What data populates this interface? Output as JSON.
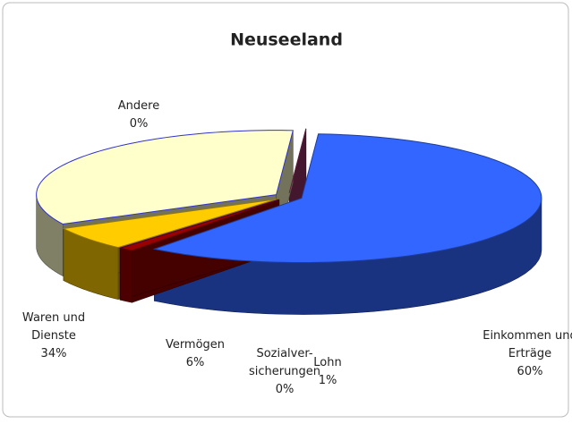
{
  "chart_data": {
    "type": "pie3d",
    "title": "Neuseeland",
    "categories": [
      "Einkommen und\nErträge",
      "Lohn",
      "Sozialver-\nsicherungen",
      "Vermögen",
      "Waren und\nDienste",
      "Andere"
    ],
    "values": [
      60,
      1,
      0,
      6,
      34,
      0
    ],
    "value_labels": [
      "60%",
      "1%",
      "0%",
      "6%",
      "34%",
      "0%"
    ],
    "colors": [
      "#3366ff",
      "#990000",
      "#800080",
      "#ffcc00",
      "#ffffcc",
      "#993366"
    ]
  }
}
